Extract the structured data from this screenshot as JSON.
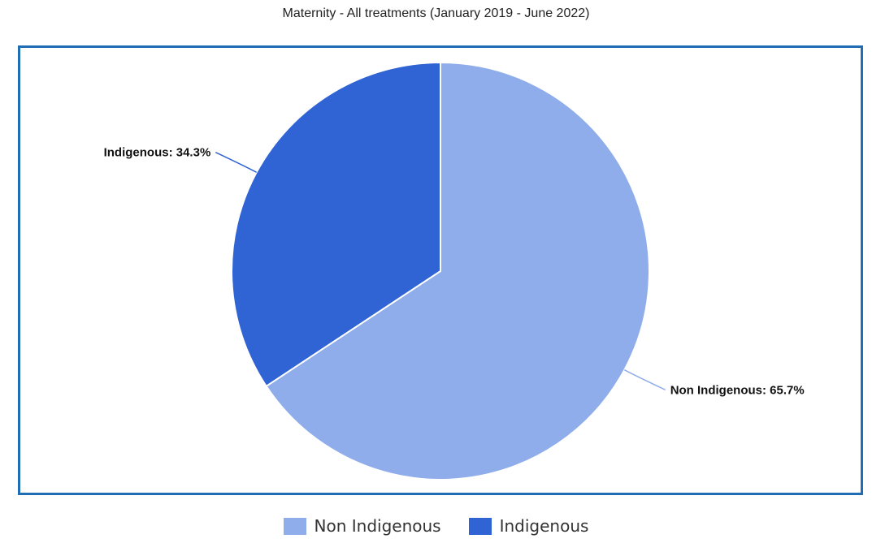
{
  "chart_data": {
    "type": "pie",
    "title": "Maternity - All treatments (January 2019 - June 2022)",
    "slices": [
      {
        "name": "Non Indigenous",
        "value": 65.7,
        "label": "Non Indigenous: 65.7%",
        "color": "#8fadea"
      },
      {
        "name": "Indigenous",
        "value": 34.3,
        "label": "Indigenous: 34.3%",
        "color": "#3063d3"
      }
    ],
    "legend": {
      "placement": "bottom",
      "entries": [
        "Non Indigenous",
        "Indigenous"
      ]
    }
  },
  "colors": {
    "frame_border": "#1f6db3",
    "slice_stroke": "#ffffff"
  }
}
